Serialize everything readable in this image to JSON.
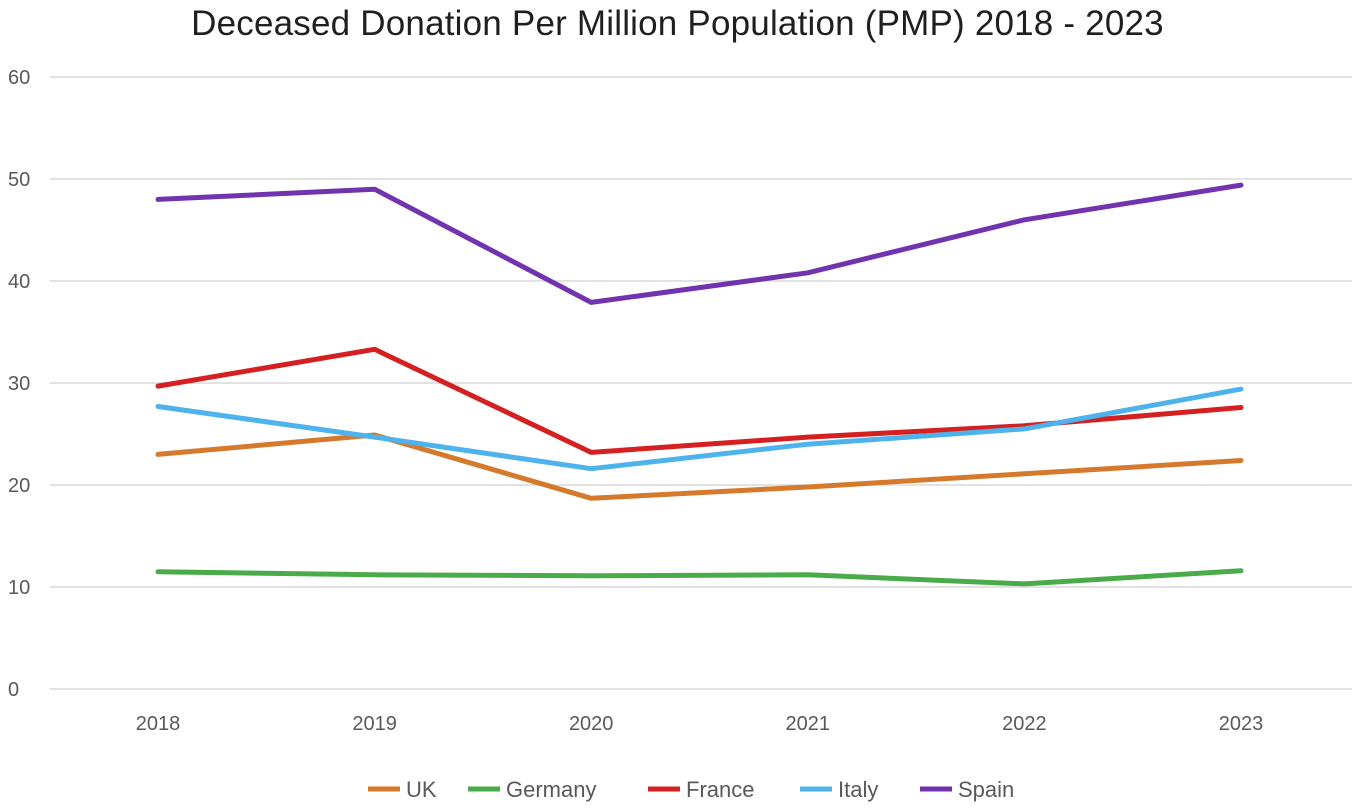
{
  "chart_data": {
    "type": "line",
    "title": "Deceased Donation Per Million Population  (PMP) 2018 - 2023",
    "xlabel": "",
    "ylabel": "",
    "categories": [
      "2018",
      "2019",
      "2020",
      "2021",
      "2022",
      "2023"
    ],
    "ylim": [
      0,
      60
    ],
    "yticks": [
      0,
      10,
      20,
      30,
      40,
      50,
      60
    ],
    "grid": true,
    "legend_position": "bottom",
    "series": [
      {
        "name": "UK",
        "color": "#d57a2c",
        "values": [
          23.0,
          24.9,
          18.7,
          19.8,
          21.1,
          22.4
        ]
      },
      {
        "name": "Germany",
        "color": "#4aab4a",
        "values": [
          11.5,
          11.2,
          11.1,
          11.2,
          10.3,
          11.6
        ]
      },
      {
        "name": "France",
        "color": "#d42020",
        "values": [
          29.7,
          33.3,
          23.2,
          24.7,
          25.8,
          27.6
        ]
      },
      {
        "name": "Italy",
        "color": "#4eb3ec",
        "values": [
          27.7,
          24.7,
          21.6,
          24.0,
          25.5,
          29.4
        ]
      },
      {
        "name": "Spain",
        "color": "#7134ae",
        "values": [
          48.0,
          49.0,
          37.9,
          40.8,
          46.0,
          49.4
        ]
      }
    ]
  }
}
